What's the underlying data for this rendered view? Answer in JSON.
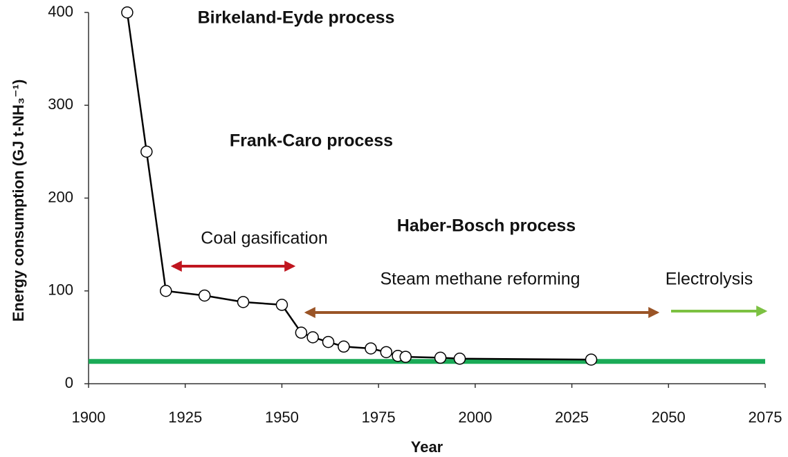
{
  "chart_data": {
    "type": "line",
    "x_label": "Year",
    "y_label": "Energy consumption (GJ t-NH₃⁻¹)",
    "x": [
      1910,
      1915,
      1920,
      1930,
      1940,
      1950,
      1955,
      1958,
      1962,
      1966,
      1973,
      1977,
      1980,
      1982,
      1991,
      1996,
      2030
    ],
    "series": [
      {
        "color": "#000000",
        "values": [
          400,
          250,
          100,
          95,
          88,
          85,
          55,
          50,
          45,
          40,
          38,
          34,
          30,
          29,
          28,
          27,
          26
        ]
      }
    ],
    "xlim": [
      1900,
      2075
    ],
    "xticks": [
      1900,
      1925,
      1950,
      1975,
      2000,
      2025,
      2050,
      2075
    ],
    "ylim": [
      0,
      400
    ],
    "yticks": [
      0,
      100,
      200,
      300,
      400
    ],
    "reference_line": {
      "value": 24,
      "color": "#1aab57"
    },
    "annotations": [
      {
        "text": "Birkeland-Eyde process",
        "color": "#111111",
        "bold": true
      },
      {
        "text": "Frank-Caro process",
        "color": "#111111",
        "bold": true
      },
      {
        "text": "Haber-Bosch process",
        "color": "#111111",
        "bold": true
      },
      {
        "text": "Coal gasification",
        "color": "#c0161f",
        "bold": false
      },
      {
        "text": "Steam methane reforming",
        "color": "#9a5426",
        "bold": false
      },
      {
        "text": "Electrolysis",
        "color": "#7cc142",
        "bold": false
      }
    ]
  }
}
